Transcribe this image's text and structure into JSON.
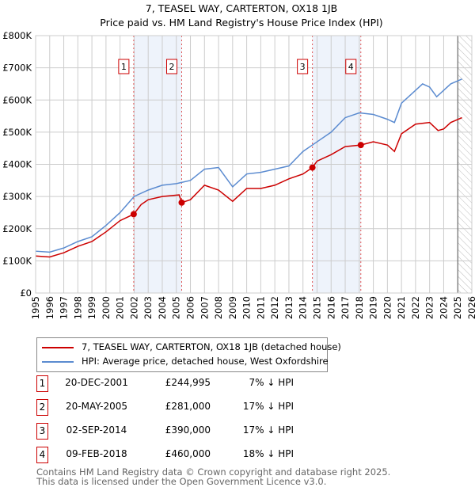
{
  "title": "7, TEASEL WAY, CARTERTON, OX18 1JB",
  "subtitle": "Price paid vs. HM Land Registry's House Price Index (HPI)",
  "chart_data": {
    "type": "line",
    "title": "7, TEASEL WAY, CARTERTON, OX18 1JB",
    "subtitle": "Price paid vs. HM Land Registry's House Price Index (HPI)",
    "xlim": [
      1995,
      2026
    ],
    "ylim": [
      0,
      800000
    ],
    "x_ticks": [
      "1995",
      "1996",
      "1997",
      "1998",
      "1999",
      "2000",
      "2001",
      "2002",
      "2003",
      "2004",
      "2005",
      "2006",
      "2007",
      "2008",
      "2009",
      "2010",
      "2011",
      "2012",
      "2013",
      "2014",
      "2015",
      "2016",
      "2017",
      "2018",
      "2019",
      "2020",
      "2021",
      "2022",
      "2023",
      "2024",
      "2025",
      "2026"
    ],
    "y_ticks": [
      {
        "v": 0,
        "label": "£0"
      },
      {
        "v": 100000,
        "label": "£100K"
      },
      {
        "v": 200000,
        "label": "£200K"
      },
      {
        "v": 300000,
        "label": "£300K"
      },
      {
        "v": 400000,
        "label": "£400K"
      },
      {
        "v": 500000,
        "label": "£500K"
      },
      {
        "v": 600000,
        "label": "£600K"
      },
      {
        "v": 700000,
        "label": "£700K"
      },
      {
        "v": 800000,
        "label": "£800K"
      }
    ],
    "grid": true,
    "forecast_hatch_from": 2025.0,
    "shaded_ranges": [
      [
        2001.97,
        2005.38
      ],
      [
        2014.67,
        2018.11
      ]
    ],
    "series": [
      {
        "name": "7, TEASEL WAY, CARTERTON, OX18 1JB (detached house)",
        "color": "#cc0000",
        "x": [
          1995,
          1996,
          1997,
          1998,
          1999,
          2000,
          2001,
          2001.97,
          2002.5,
          2003,
          2004,
          2005.2,
          2005.38,
          2006,
          2007,
          2008,
          2009,
          2010,
          2011,
          2012,
          2013,
          2014,
          2014.67,
          2015,
          2016,
          2017,
          2018.11,
          2019,
          2020,
          2020.5,
          2021,
          2022,
          2023,
          2023.6,
          2024,
          2024.5,
          2025.3
        ],
        "y": [
          115000,
          112000,
          125000,
          145000,
          160000,
          190000,
          225000,
          244995,
          275000,
          290000,
          300000,
          305000,
          281000,
          290000,
          335000,
          320000,
          285000,
          325000,
          325000,
          335000,
          355000,
          370000,
          390000,
          410000,
          430000,
          455000,
          460000,
          470000,
          460000,
          440000,
          495000,
          525000,
          530000,
          505000,
          510000,
          530000,
          545000
        ]
      },
      {
        "name": "HPI: Average price, detached house, West Oxfordshire",
        "color": "#5b8bd0",
        "x": [
          1995,
          1996,
          1997,
          1998,
          1999,
          2000,
          2001,
          2002,
          2003,
          2004,
          2005,
          2006,
          2007,
          2008,
          2009,
          2010,
          2011,
          2012,
          2013,
          2014,
          2015,
          2016,
          2017,
          2018,
          2019,
          2020,
          2020.5,
          2021,
          2022,
          2022.5,
          2023,
          2023.5,
          2024,
          2024.5,
          2025.3
        ],
        "y": [
          130000,
          127000,
          140000,
          160000,
          175000,
          210000,
          250000,
          300000,
          320000,
          335000,
          340000,
          350000,
          385000,
          390000,
          330000,
          370000,
          375000,
          385000,
          395000,
          440000,
          470000,
          500000,
          545000,
          560000,
          555000,
          540000,
          530000,
          590000,
          630000,
          650000,
          640000,
          610000,
          630000,
          650000,
          665000
        ]
      }
    ],
    "markers": [
      {
        "label": "1",
        "x": 2001.97,
        "y": 244995
      },
      {
        "label": "2",
        "x": 2005.38,
        "y": 281000
      },
      {
        "label": "3",
        "x": 2014.67,
        "y": 390000
      },
      {
        "label": "4",
        "x": 2018.11,
        "y": 460000
      }
    ]
  },
  "legend": [
    "7, TEASEL WAY, CARTERTON, OX18 1JB (detached house)",
    "HPI: Average price, detached house, West Oxfordshire"
  ],
  "sales": [
    {
      "n": "1",
      "date": "20-DEC-2001",
      "price": "£244,995",
      "hpi": "7% ↓ HPI"
    },
    {
      "n": "2",
      "date": "20-MAY-2005",
      "price": "£281,000",
      "hpi": "17% ↓ HPI"
    },
    {
      "n": "3",
      "date": "02-SEP-2014",
      "price": "£390,000",
      "hpi": "17% ↓ HPI"
    },
    {
      "n": "4",
      "date": "09-FEB-2018",
      "price": "£460,000",
      "hpi": "18% ↓ HPI"
    }
  ],
  "footer": [
    "Contains HM Land Registry data © Crown copyright and database right 2025.",
    "This data is licensed under the Open Government Licence v3.0."
  ]
}
